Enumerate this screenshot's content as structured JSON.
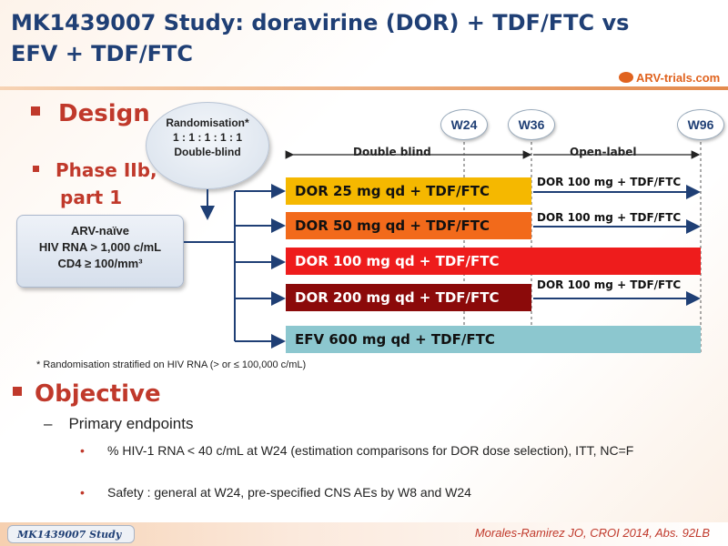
{
  "title": "MK1439007 Study: doravirine (DOR) + TDF/FTC vs EFV + TDF/FTC",
  "logo": "ARV-trials.com",
  "design": {
    "heading": "Design",
    "phase_line1": "Phase IIb,",
    "phase_line2": "part 1",
    "randomisation": [
      "Randomisation*",
      "1 : 1 : 1 : 1 : 1",
      "Double-blind"
    ],
    "population": [
      "ARV-naïve",
      "HIV RNA > 1,000 c/mL",
      "CD4 ≥ 100/mm³"
    ],
    "timepoints": [
      "W24",
      "W36",
      "W96"
    ],
    "double_blind_label": "Double blind",
    "open_label_label": "Open-label",
    "arms": [
      {
        "label": "DOR 25 mg qd + TDF/FTC",
        "color": "#f5b800",
        "extension": "DOR 100 mg + TDF/FTC"
      },
      {
        "label": "DOR 50 mg qd + TDF/FTC",
        "color": "#f26a1b",
        "extension": "DOR 100 mg + TDF/FTC"
      },
      {
        "label": "DOR 100 mg qd + TDF/FTC",
        "color": "#ee1c1c",
        "extension": ""
      },
      {
        "label": "DOR 200 mg qd + TDF/FTC",
        "color": "#8b0a0a",
        "extension": "DOR 100 mg + TDF/FTC"
      },
      {
        "label": "EFV 600 mg qd + TDF/FTC",
        "color": "#8cc7cf",
        "extension": ""
      }
    ],
    "footnote": "* Randomisation stratified on HIV RNA (> or ≤ 100,000 c/mL)"
  },
  "objective": {
    "heading": "Objective",
    "primary": "Primary endpoints",
    "bullets": [
      "% HIV-1 RNA < 40 c/mL at W24 (estimation comparisons for DOR dose selection), ITT, NC=F",
      "Safety : general at W24, pre-specified CNS AEs by W8 and W24"
    ]
  },
  "footer": {
    "study_tab": "MK1439007 Study",
    "reference": "Morales-Ramirez JO, CROI 2014, Abs. 92LB"
  }
}
